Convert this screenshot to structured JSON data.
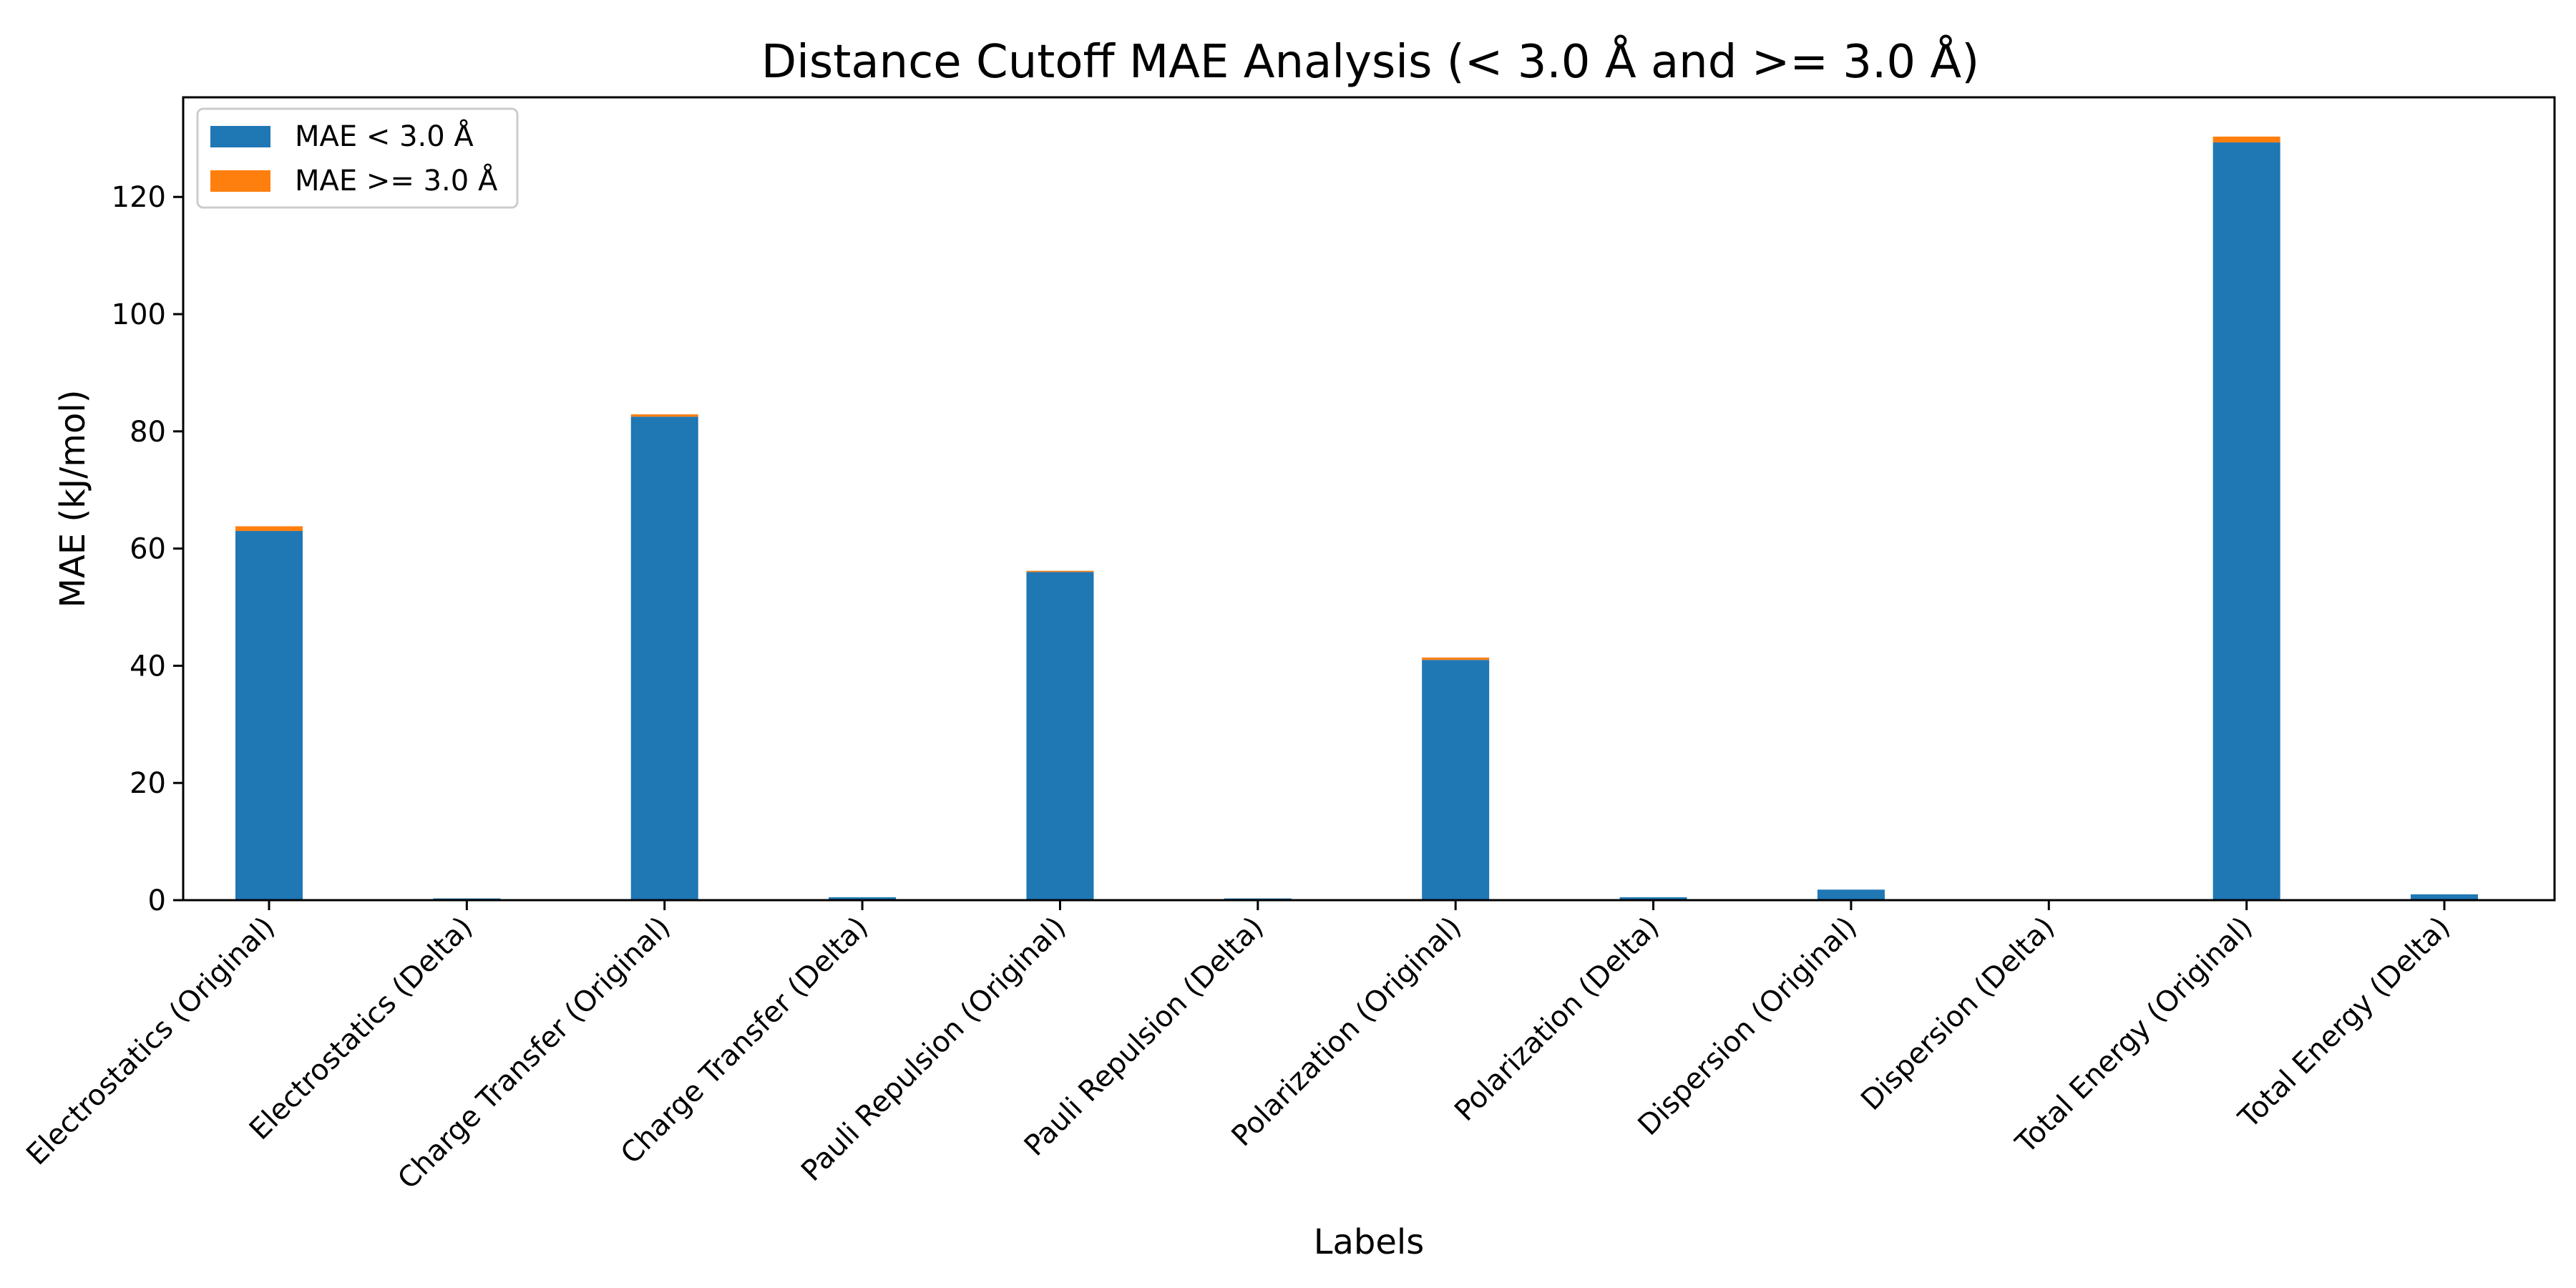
{
  "chart_data": {
    "type": "bar",
    "stacked": true,
    "title": "Distance Cutoff MAE Analysis (< 3.0 Å and >= 3.0 Å)",
    "xlabel": "Labels",
    "ylabel": "MAE (kJ/mol)",
    "ylim": [
      0,
      137
    ],
    "yticks": [
      0,
      20,
      40,
      60,
      80,
      100,
      120
    ],
    "grid": false,
    "legend_position": "top-left",
    "categories": [
      "Electrostatics (Original)",
      "Electrostatics (Delta)",
      "Charge Transfer (Original)",
      "Charge Transfer (Delta)",
      "Pauli Repulsion (Original)",
      "Pauli Repulsion (Delta)",
      "Polarization (Original)",
      "Polarization (Delta)",
      "Dispersion (Original)",
      "Dispersion (Delta)",
      "Total Energy (Original)",
      "Total Energy (Delta)"
    ],
    "series": [
      {
        "name": "MAE < 3.0 Å",
        "color": "#1f77b4",
        "values": [
          63.0,
          0.3,
          82.5,
          0.5,
          56.0,
          0.3,
          41.0,
          0.5,
          1.8,
          0.1,
          129.3,
          1.0
        ]
      },
      {
        "name": "MAE >= 3.0 Å",
        "color": "#ff7f0e",
        "values": [
          0.8,
          0.0,
          0.4,
          0.0,
          0.2,
          0.0,
          0.4,
          0.0,
          0.0,
          0.0,
          1.0,
          0.0
        ]
      }
    ]
  }
}
